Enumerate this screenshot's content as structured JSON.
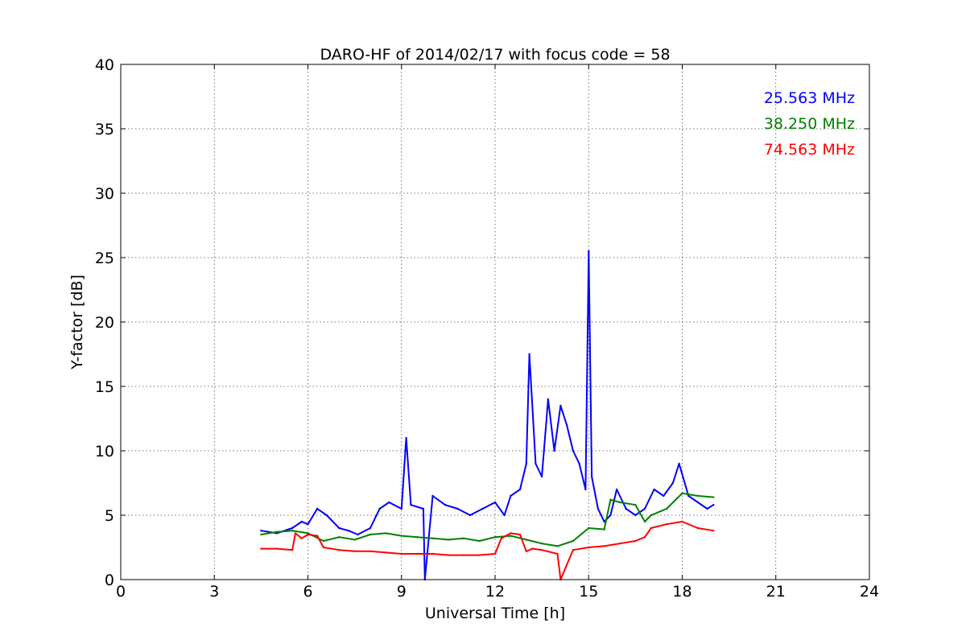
{
  "chart_data": {
    "type": "line",
    "title": "DARO-HF of 2014/02/17 with focus code = 58",
    "xlabel": "Universal Time [h]",
    "ylabel": "Y-factor [dB]",
    "xlim": [
      0,
      24
    ],
    "ylim": [
      0,
      40
    ],
    "xticks": [
      0,
      3,
      6,
      9,
      12,
      15,
      18,
      21,
      24
    ],
    "yticks": [
      0,
      5,
      10,
      15,
      20,
      25,
      30,
      35,
      40
    ],
    "grid": true,
    "legend_position": "top-right",
    "series": [
      {
        "name": "25.563 MHz",
        "color": "#0000ff",
        "x": [
          4.5,
          5.0,
          5.5,
          5.8,
          6.0,
          6.3,
          6.6,
          7.0,
          7.3,
          7.6,
          8.0,
          8.3,
          8.6,
          9.0,
          9.15,
          9.3,
          9.7,
          9.75,
          10.0,
          10.4,
          10.8,
          11.2,
          11.6,
          12.0,
          12.3,
          12.5,
          12.8,
          13.0,
          13.1,
          13.3,
          13.5,
          13.7,
          13.9,
          14.1,
          14.3,
          14.5,
          14.7,
          14.9,
          15.0,
          15.1,
          15.3,
          15.5,
          15.7,
          15.9,
          16.2,
          16.5,
          16.8,
          17.1,
          17.4,
          17.7,
          17.9,
          18.2,
          18.5,
          18.8,
          19.0
        ],
        "y": [
          3.8,
          3.6,
          4.0,
          4.5,
          4.3,
          5.5,
          5.0,
          4.0,
          3.8,
          3.5,
          4.0,
          5.5,
          6.0,
          5.5,
          11.0,
          5.8,
          5.5,
          0.0,
          6.5,
          5.8,
          5.5,
          5.0,
          5.5,
          6.0,
          5.0,
          6.5,
          7.0,
          9.0,
          17.5,
          9.0,
          8.0,
          14.0,
          10.0,
          13.5,
          12.0,
          10.0,
          9.0,
          7.0,
          25.5,
          8.0,
          5.5,
          4.5,
          5.0,
          7.0,
          5.5,
          5.0,
          5.5,
          7.0,
          6.5,
          7.5,
          9.0,
          6.5,
          6.0,
          5.5,
          5.8
        ]
      },
      {
        "name": "38.250 MHz",
        "color": "#008000",
        "x": [
          4.5,
          5.0,
          5.5,
          6.0,
          6.5,
          7.0,
          7.5,
          8.0,
          8.5,
          9.0,
          9.5,
          10.0,
          10.5,
          11.0,
          11.5,
          12.0,
          12.5,
          13.0,
          13.5,
          14.0,
          14.5,
          15.0,
          15.5,
          15.7,
          16.0,
          16.5,
          16.8,
          17.0,
          17.5,
          18.0,
          18.5,
          19.0
        ],
        "y": [
          3.5,
          3.7,
          3.8,
          3.6,
          3.0,
          3.3,
          3.1,
          3.5,
          3.6,
          3.4,
          3.3,
          3.2,
          3.1,
          3.2,
          3.0,
          3.3,
          3.4,
          3.1,
          2.8,
          2.6,
          3.0,
          4.0,
          3.9,
          6.2,
          6.0,
          5.8,
          4.5,
          5.0,
          5.5,
          6.7,
          6.5,
          6.4
        ]
      },
      {
        "name": "74.563 MHz",
        "color": "#ff0000",
        "x": [
          4.5,
          5.0,
          5.5,
          5.6,
          5.8,
          6.0,
          6.3,
          6.5,
          7.0,
          7.5,
          8.0,
          8.5,
          9.0,
          9.5,
          10.0,
          10.5,
          11.0,
          11.5,
          12.0,
          12.2,
          12.5,
          12.8,
          13.0,
          13.2,
          13.5,
          14.0,
          14.1,
          14.5,
          15.0,
          15.5,
          16.0,
          16.5,
          16.8,
          17.0,
          17.5,
          18.0,
          18.5,
          19.0
        ],
        "y": [
          2.4,
          2.4,
          2.3,
          3.6,
          3.2,
          3.5,
          3.4,
          2.5,
          2.3,
          2.2,
          2.2,
          2.1,
          2.0,
          2.0,
          2.0,
          1.9,
          1.9,
          1.9,
          2.0,
          3.2,
          3.6,
          3.5,
          2.2,
          2.4,
          2.3,
          2.0,
          0.0,
          2.3,
          2.5,
          2.6,
          2.8,
          3.0,
          3.3,
          4.0,
          4.3,
          4.5,
          4.0,
          3.8
        ]
      }
    ]
  }
}
